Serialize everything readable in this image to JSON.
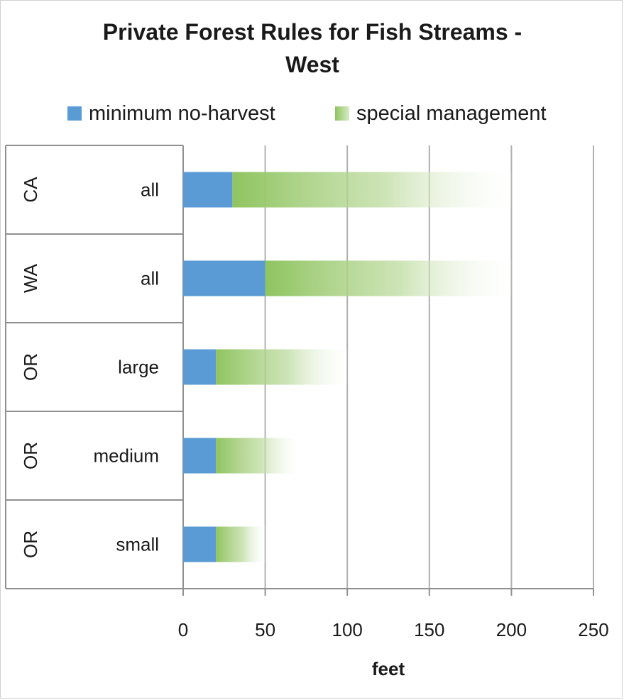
{
  "chart_data": {
    "type": "bar",
    "orientation": "horizontal",
    "stacked": true,
    "title_line1": "Private Forest Rules for Fish Streams -",
    "title_line2": "West",
    "xlabel": "feet",
    "xlim": [
      0,
      250
    ],
    "xticks": [
      "0",
      "50",
      "100",
      "150",
      "200",
      "250"
    ],
    "grid": true,
    "legend_position": "top",
    "categories": [
      {
        "group": "CA",
        "label": "all"
      },
      {
        "group": "WA",
        "label": "all"
      },
      {
        "group": "OR",
        "label": "large"
      },
      {
        "group": "OR",
        "label": "medium"
      },
      {
        "group": "OR",
        "label": "small"
      }
    ],
    "series": [
      {
        "name": "minimum no-harvest",
        "color": "#5b9bd5",
        "values": [
          30,
          50,
          20,
          20,
          20
        ]
      },
      {
        "name": "special management",
        "color": "#8fc45f",
        "values": [
          170,
          150,
          80,
          50,
          30
        ]
      }
    ]
  }
}
